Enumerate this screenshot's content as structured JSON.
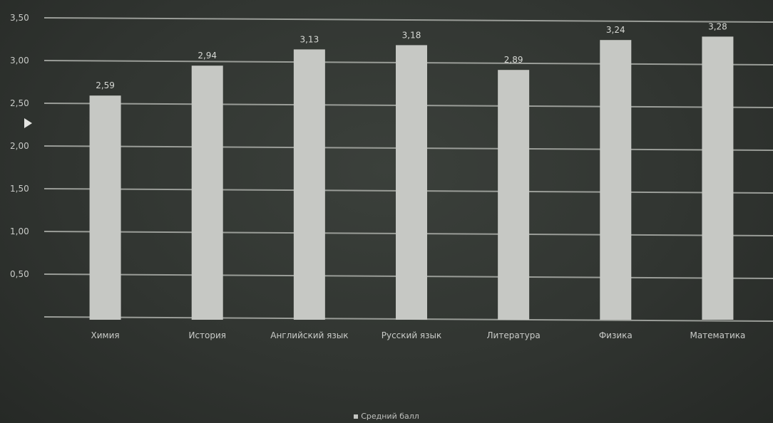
{
  "chart_data": {
    "type": "bar",
    "categories": [
      "Химия",
      "История",
      "Английский язык",
      "Русский язык",
      "Литература",
      "Физика",
      "Математика"
    ],
    "series": [
      {
        "name": "Средний балл",
        "values": [
          2.59,
          2.94,
          3.13,
          3.18,
          2.89,
          3.24,
          3.28
        ]
      }
    ],
    "data_labels": [
      "2,59",
      "2,94",
      "3,13",
      "3,18",
      "2,89",
      "3,24",
      "3,28"
    ],
    "ylim": [
      0,
      3.5
    ],
    "yticks": [
      "0,50",
      "1,00",
      "1,50",
      "2,00",
      "2,50",
      "3,00",
      "3,50"
    ],
    "ytick_values": [
      0.5,
      1.0,
      1.5,
      2.0,
      2.5,
      3.0,
      3.5
    ],
    "grid": true,
    "legend_position": "bottom",
    "colors": {
      "bar": "#c6c8c4",
      "grid": "#9a9d98",
      "axis_text": "#c9cbc8"
    }
  },
  "legend": {
    "label": "Средний балл"
  },
  "icons": {
    "pointer": "play-triangle-icon"
  }
}
